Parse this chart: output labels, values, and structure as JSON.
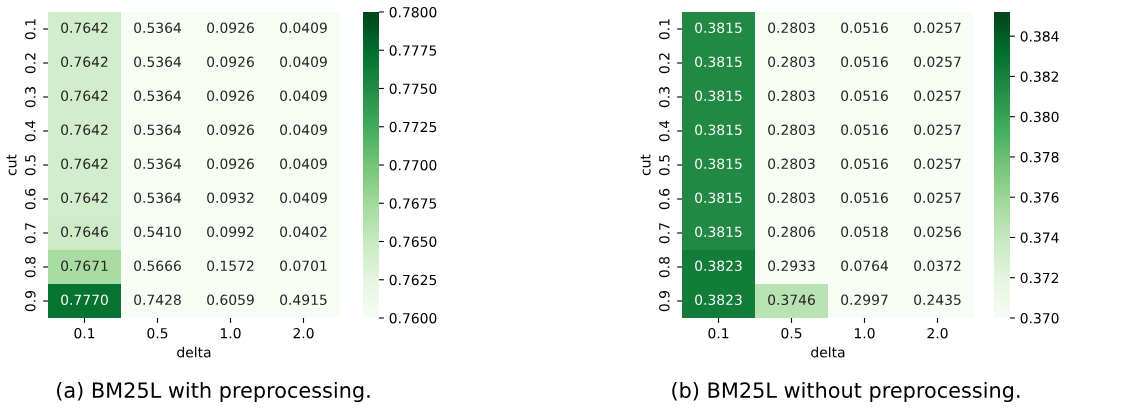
{
  "chart_data": [
    {
      "type": "heatmap",
      "xlabel": "delta",
      "ylabel": "cut",
      "categories": [
        "0.1",
        "0.5",
        "1.0",
        "2.0"
      ],
      "y_categories": [
        "0.1",
        "0.2",
        "0.3",
        "0.4",
        "0.5",
        "0.6",
        "0.7",
        "0.8",
        "0.9"
      ],
      "cells": [
        [
          0.7642,
          0.5364,
          0.0926,
          0.0409
        ],
        [
          0.7642,
          0.5364,
          0.0926,
          0.0409
        ],
        [
          0.7642,
          0.5364,
          0.0926,
          0.0409
        ],
        [
          0.7642,
          0.5364,
          0.0926,
          0.0409
        ],
        [
          0.7642,
          0.5364,
          0.0926,
          0.0409
        ],
        [
          0.7642,
          0.5364,
          0.0932,
          0.0409
        ],
        [
          0.7646,
          0.541,
          0.0992,
          0.0402
        ],
        [
          0.7671,
          0.5666,
          0.1572,
          0.0701
        ],
        [
          0.777,
          0.7428,
          0.6059,
          0.4915
        ]
      ],
      "cell_labels": [
        [
          "0.7642",
          "0.5364",
          "0.0926",
          "0.0409"
        ],
        [
          "0.7642",
          "0.5364",
          "0.0926",
          "0.0409"
        ],
        [
          "0.7642",
          "0.5364",
          "0.0926",
          "0.0409"
        ],
        [
          "0.7642",
          "0.5364",
          "0.0926",
          "0.0409"
        ],
        [
          "0.7642",
          "0.5364",
          "0.0926",
          "0.0409"
        ],
        [
          "0.7642",
          "0.5364",
          "0.0932",
          "0.0409"
        ],
        [
          "0.7646",
          "0.5410",
          "0.0992",
          "0.0402"
        ],
        [
          "0.7671",
          "0.5666",
          "0.1572",
          "0.0701"
        ],
        [
          "0.7770",
          "0.7428",
          "0.6059",
          "0.4915"
        ]
      ],
      "clim": [
        0.76,
        0.78
      ],
      "cticks": [
        {
          "value": 0.76,
          "label": "0.7600"
        },
        {
          "value": 0.7625,
          "label": "0.7625"
        },
        {
          "value": 0.765,
          "label": "0.7650"
        },
        {
          "value": 0.7675,
          "label": "0.7675"
        },
        {
          "value": 0.77,
          "label": "0.7700"
        },
        {
          "value": 0.7725,
          "label": "0.7725"
        },
        {
          "value": 0.775,
          "label": "0.7750"
        },
        {
          "value": 0.7775,
          "label": "0.7775"
        },
        {
          "value": 0.78,
          "label": "0.7800"
        }
      ],
      "annotations": [
        "(a) BM25L with preprocessing."
      ]
    },
    {
      "type": "heatmap",
      "xlabel": "delta",
      "ylabel": "cut",
      "categories": [
        "0.1",
        "0.5",
        "1.0",
        "2.0"
      ],
      "y_categories": [
        "0.1",
        "0.2",
        "0.3",
        "0.4",
        "0.5",
        "0.6",
        "0.7",
        "0.8",
        "0.9"
      ],
      "cells": [
        [
          0.3815,
          0.2803,
          0.0516,
          0.0257
        ],
        [
          0.3815,
          0.2803,
          0.0516,
          0.0257
        ],
        [
          0.3815,
          0.2803,
          0.0516,
          0.0257
        ],
        [
          0.3815,
          0.2803,
          0.0516,
          0.0257
        ],
        [
          0.3815,
          0.2803,
          0.0516,
          0.0257
        ],
        [
          0.3815,
          0.2803,
          0.0516,
          0.0257
        ],
        [
          0.3815,
          0.2806,
          0.0518,
          0.0256
        ],
        [
          0.3823,
          0.2933,
          0.0764,
          0.0372
        ],
        [
          0.3823,
          0.3746,
          0.2997,
          0.2435
        ]
      ],
      "data_labels": true,
      "clim": [
        0.37,
        0.3852
      ],
      "cticks": [
        {
          "value": 0.37,
          "label": "0.370"
        },
        {
          "value": 0.372,
          "label": "0.372"
        },
        {
          "value": 0.374,
          "label": "0.374"
        },
        {
          "value": 0.376,
          "label": "0.376"
        },
        {
          "value": 0.378,
          "label": "0.378"
        },
        {
          "value": 0.38,
          "label": "0.380"
        },
        {
          "value": 0.382,
          "label": "0.382"
        },
        {
          "value": 0.384,
          "label": "0.384"
        }
      ],
      "annotations": [
        "(b) BM25L without preprocessing."
      ]
    }
  ]
}
